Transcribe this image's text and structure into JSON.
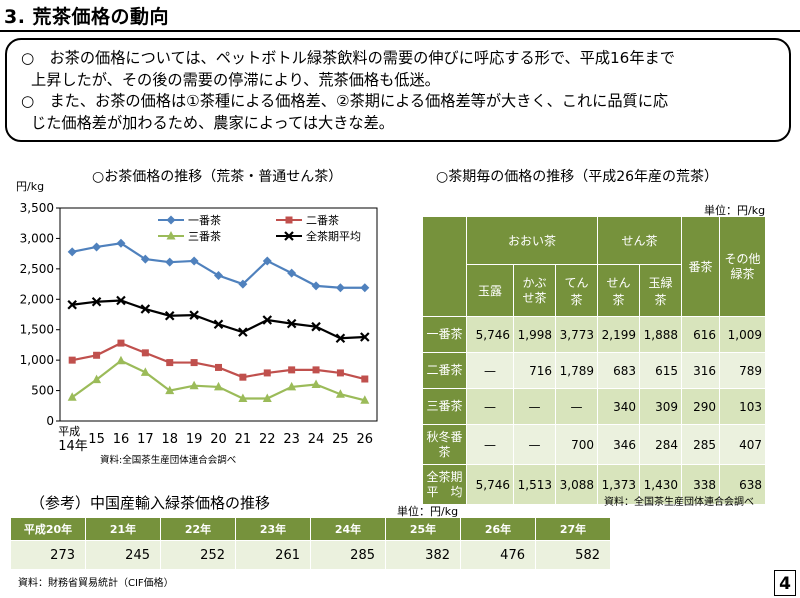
{
  "page": {
    "title": "3. 荒茶価格の動向",
    "number": "4"
  },
  "summary": {
    "bullet1_line1": "○　お茶の価格については、ペットボトル緑茶飲料の需要の伸びに呼応する形で、平成16年まで",
    "bullet1_line2": "上昇したが、その後の需要の停滞により、荒茶価格も低迷。",
    "bullet2_line1": "○　また、お茶の価格は①茶種による価格差、②茶期による価格差等が大きく、これに品質に応",
    "bullet2_line2": "じた価格差が加わるため、農家によっては大きな差。"
  },
  "chart_data": {
    "type": "line",
    "title": "○お茶価格の推移（荒茶・普通せん茶）",
    "ylabel": "円/kg",
    "ylim": [
      0,
      3500
    ],
    "yticks": [
      "0",
      "500",
      "1,000",
      "1,500",
      "2,000",
      "2,500",
      "3,000",
      "3,500"
    ],
    "x_first_label": "平成",
    "x_first_label2": "14年",
    "categories": [
      "14",
      "15",
      "16",
      "17",
      "18",
      "19",
      "20",
      "21",
      "22",
      "23",
      "24",
      "25",
      "26"
    ],
    "grid": false,
    "legend_position": "top",
    "source": "資料:全国茶生産団体連合会調べ",
    "series": [
      {
        "name": "一番茶",
        "color": "#4f81bd",
        "marker": "diamond",
        "values": [
          2780,
          2860,
          2920,
          2660,
          2610,
          2630,
          2390,
          2250,
          2630,
          2430,
          2220,
          2190,
          2190
        ]
      },
      {
        "name": "二番茶",
        "color": "#c0504d",
        "marker": "square",
        "values": [
          1000,
          1080,
          1280,
          1120,
          960,
          960,
          880,
          720,
          790,
          840,
          840,
          790,
          690
        ]
      },
      {
        "name": "三番茶",
        "color": "#9bbb59",
        "marker": "triangle",
        "values": [
          390,
          680,
          990,
          800,
          500,
          580,
          560,
          370,
          370,
          560,
          600,
          440,
          340
        ]
      },
      {
        "name": "全茶期平均",
        "color": "#000000",
        "marker": "x",
        "values": [
          1910,
          1960,
          1980,
          1840,
          1730,
          1740,
          1590,
          1460,
          1660,
          1600,
          1550,
          1360,
          1380
        ]
      }
    ]
  },
  "tea_table": {
    "title": "○茶期毎の価格の推移（平成26年産の荒茶）",
    "unit": "単位：円/kg",
    "group_headers": {
      "ooi": "おおい茶",
      "sencha": "せん茶",
      "bancha": "番茶",
      "other": "その他緑茶"
    },
    "sub_headers": [
      "玉露",
      "かぶせ茶",
      "てん茶",
      "せん茶",
      "玉緑茶"
    ],
    "rows": [
      {
        "label": "一番茶",
        "cells": [
          "5,746",
          "1,998",
          "3,773",
          "2,199",
          "1,888",
          "616",
          "1,009"
        ]
      },
      {
        "label": "二番茶",
        "cells": [
          "—",
          "716",
          "1,789",
          "683",
          "615",
          "316",
          "789"
        ]
      },
      {
        "label": "三番茶",
        "cells": [
          "—",
          "—",
          "—",
          "340",
          "309",
          "290",
          "103"
        ]
      },
      {
        "label": "秋冬番茶",
        "cells": [
          "—",
          "—",
          "700",
          "346",
          "284",
          "285",
          "407"
        ]
      },
      {
        "label": "全茶期平　均",
        "cells": [
          "5,746",
          "1,513",
          "3,088",
          "1,373",
          "1,430",
          "338",
          "638"
        ]
      }
    ],
    "source": "資料：全国茶生産団体連合会調べ"
  },
  "china_table": {
    "title": "（参考）中国産輸入緑茶価格の推移",
    "unit": "単位：円/kg",
    "headers": [
      "平成20年",
      "21年",
      "22年",
      "23年",
      "24年",
      "25年",
      "26年",
      "27年"
    ],
    "values": [
      "273",
      "245",
      "252",
      "261",
      "285",
      "382",
      "476",
      "582"
    ],
    "source": "資料：財務省貿易統計（CIF価格）"
  }
}
